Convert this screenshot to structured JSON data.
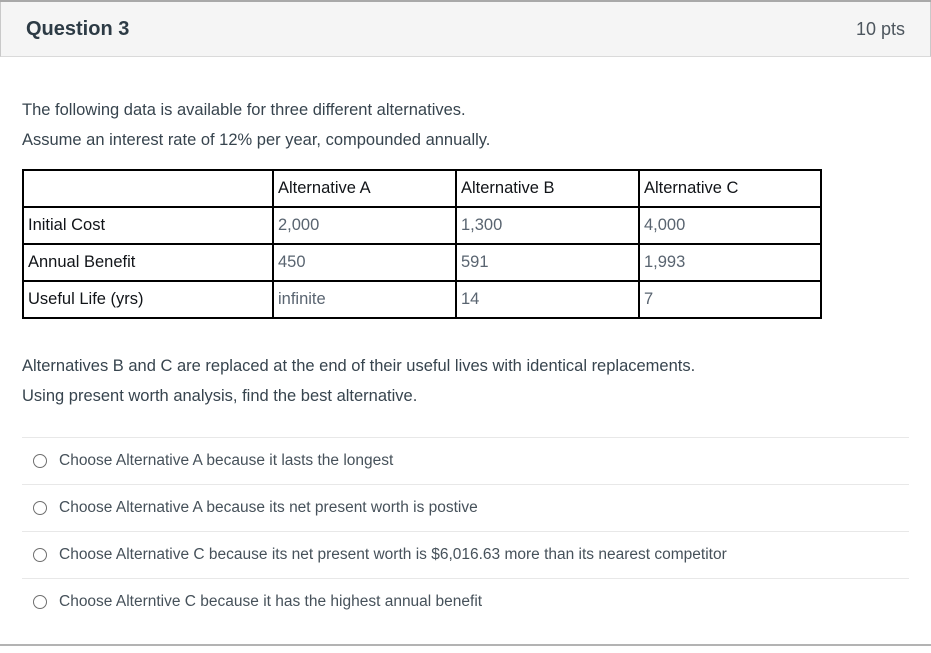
{
  "header": {
    "title": "Question 3",
    "points": "10 pts"
  },
  "question": {
    "intro": {
      "line1": "The following data is available for three different alternatives.",
      "line2": "Assume an interest rate of 12% per year, compounded annually."
    },
    "table": {
      "columns": [
        "",
        "Alternative A",
        "Alternative B",
        "Alternative C"
      ],
      "rows": [
        {
          "label": "Initial Cost",
          "values": [
            "2,000",
            "1,300",
            "4,000"
          ]
        },
        {
          "label": "Annual Benefit",
          "values": [
            "450",
            "591",
            "1,993"
          ]
        },
        {
          "label": "Useful Life (yrs)",
          "values": [
            "infinite",
            "14",
            "7"
          ]
        }
      ]
    },
    "followup": {
      "line1": "Alternatives B and C are replaced at the end of their useful lives with identical replacements.",
      "line2": "Using present worth analysis, find the best alternative."
    },
    "options": [
      {
        "label": "Choose Alternative A because it lasts the longest"
      },
      {
        "label": "Choose Alternative A because its net present worth is postive"
      },
      {
        "label": "Choose Alternative C because its net present worth is $6,016.63 more than its nearest competitor"
      },
      {
        "label": "Choose Alterntive C because it has the highest annual benefit"
      }
    ]
  },
  "colors": {
    "header_background": "#f5f5f5",
    "heading_text": "#2d3b45",
    "table_border": "#000000",
    "value_text": "#596470",
    "divider": "#e8e8e8"
  }
}
